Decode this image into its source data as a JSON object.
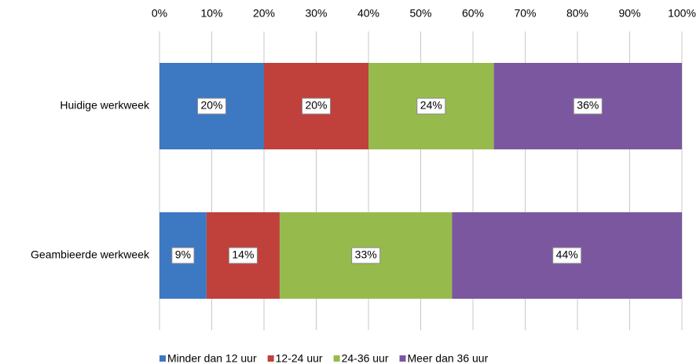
{
  "chart_data": {
    "type": "stacked-horizontal-bar",
    "categories": [
      "Huidige werkweek",
      "Geambieerde werkweek"
    ],
    "series": [
      {
        "name": "Minder dan 12 uur",
        "color": "#3d78c2",
        "values": [
          20,
          9
        ],
        "value_labels": [
          "20%",
          "9%"
        ]
      },
      {
        "name": "12-24 uur",
        "color": "#c0403c",
        "values": [
          20,
          14
        ],
        "value_labels": [
          "20%",
          "14%"
        ]
      },
      {
        "name": "24-36 uur",
        "color": "#96bb4c",
        "values": [
          24,
          33
        ],
        "value_labels": [
          "24%",
          "33%"
        ]
      },
      {
        "name": "Meer dan 36 uur",
        "color": "#7b57a0",
        "values": [
          36,
          44
        ],
        "value_labels": [
          "36%",
          "44%"
        ]
      }
    ],
    "xlim": [
      0,
      100
    ],
    "xticks": [
      {
        "value": 0,
        "label": "0%"
      },
      {
        "value": 10,
        "label": "10%"
      },
      {
        "value": 20,
        "label": "20%"
      },
      {
        "value": 30,
        "label": "30%"
      },
      {
        "value": 40,
        "label": "40%"
      },
      {
        "value": 50,
        "label": "50%"
      },
      {
        "value": 60,
        "label": "60%"
      },
      {
        "value": 70,
        "label": "70%"
      },
      {
        "value": 80,
        "label": "80%"
      },
      {
        "value": 90,
        "label": "90%"
      },
      {
        "value": 100,
        "label": "100%"
      }
    ],
    "grid": true,
    "legend": "bottom"
  }
}
